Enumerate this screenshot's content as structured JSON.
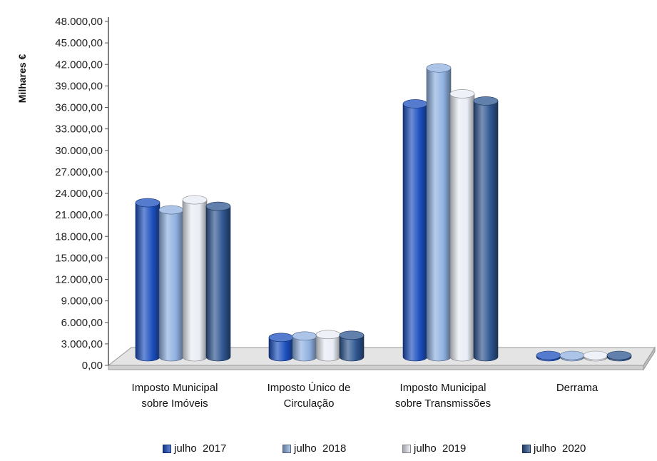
{
  "chart_data": {
    "type": "bar",
    "ylabel": "Milhares €",
    "xlabel": "",
    "title": "",
    "ylim": [
      0,
      48000
    ],
    "yticks": [
      0,
      3000,
      6000,
      9000,
      12000,
      15000,
      18000,
      21000,
      24000,
      27000,
      30000,
      33000,
      36000,
      39000,
      42000,
      45000,
      48000
    ],
    "ytick_labels": [
      "0,00",
      "3.000,00",
      "6.000,00",
      "9.000,00",
      "12.000,00",
      "15.000,00",
      "18.000,00",
      "21.000,00",
      "24.000,00",
      "27.000,00",
      "30.000,00",
      "33.000,00",
      "36.000,00",
      "39.000,00",
      "42.000,00",
      "45.000,00",
      "48.000,00"
    ],
    "categories": [
      [
        "Imposto Municipal",
        "sobre Imóveis"
      ],
      [
        "Imposto Único de",
        "Circulação"
      ],
      [
        "Imposto Municipal",
        "sobre Transmissões"
      ],
      [
        "Derrama"
      ]
    ],
    "series": [
      {
        "name": "julho  2017",
        "color": "#1c4fbf",
        "values": [
          22700,
          3900,
          36500,
          350
        ]
      },
      {
        "name": "julho  2018",
        "color": "#8fb0e0",
        "values": [
          21700,
          4100,
          41500,
          500
        ]
      },
      {
        "name": "julho  2019",
        "color": "#e8ecf4",
        "values": [
          23100,
          4300,
          37900,
          550
        ]
      },
      {
        "name": "julho  2020",
        "color": "#2e5590",
        "values": [
          22200,
          4200,
          36900,
          300
        ]
      }
    ],
    "legend_position": "bottom",
    "grid": false
  }
}
